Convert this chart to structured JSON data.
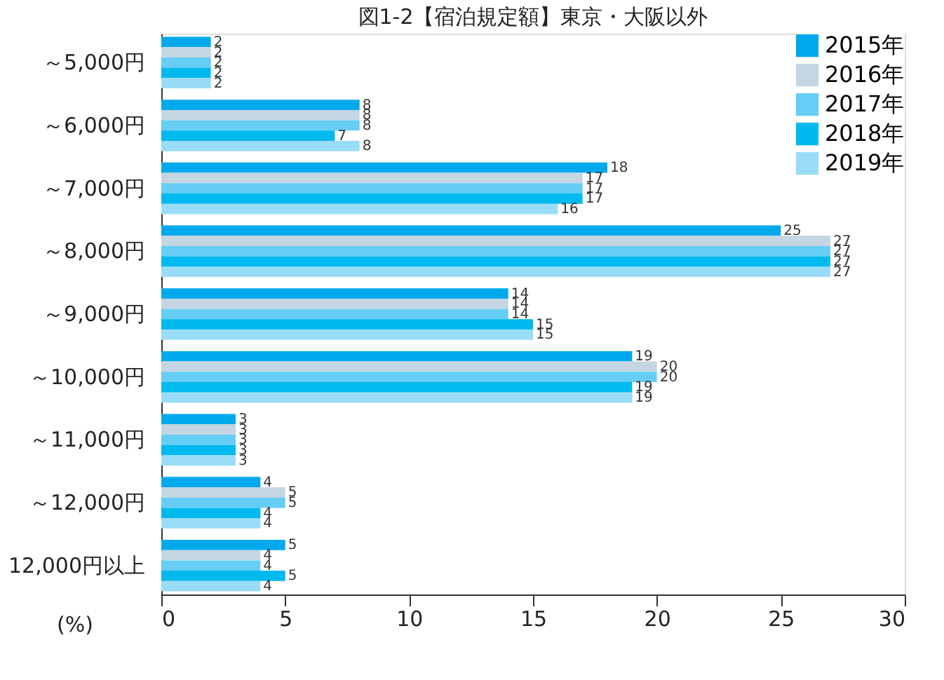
{
  "chart_data": {
    "type": "bar",
    "orientation": "horizontal",
    "title": "図1-2【宿泊規定額】東京・大阪以外",
    "xlabel": "(%)",
    "categories": [
      "～5,000円",
      "～6,000円",
      "～7,000円",
      "～8,000円",
      "～9,000円",
      "～10,000円",
      "～11,000円",
      "～12,000円",
      "12,000円以上"
    ],
    "series": [
      {
        "name": "2015年",
        "color": "#00a9ec",
        "values": [
          2,
          8,
          18,
          25,
          14,
          19,
          3,
          4,
          5
        ]
      },
      {
        "name": "2016年",
        "color": "#c4d6e2",
        "values": [
          2,
          8,
          17,
          27,
          14,
          20,
          3,
          5,
          4
        ]
      },
      {
        "name": "2017年",
        "color": "#66cdf5",
        "values": [
          2,
          8,
          17,
          27,
          14,
          20,
          3,
          5,
          4
        ]
      },
      {
        "name": "2018年",
        "color": "#00b9ef",
        "values": [
          2,
          7,
          17,
          27,
          15,
          19,
          3,
          4,
          5
        ]
      },
      {
        "name": "2019年",
        "color": "#99dcf8",
        "values": [
          2,
          8,
          16,
          27,
          15,
          19,
          3,
          4,
          4
        ]
      }
    ],
    "xlim": [
      0,
      30
    ],
    "xticks": [
      0,
      5,
      10,
      15,
      20,
      25,
      30
    ],
    "grid": false,
    "legend": "top right",
    "data_labels": true
  }
}
